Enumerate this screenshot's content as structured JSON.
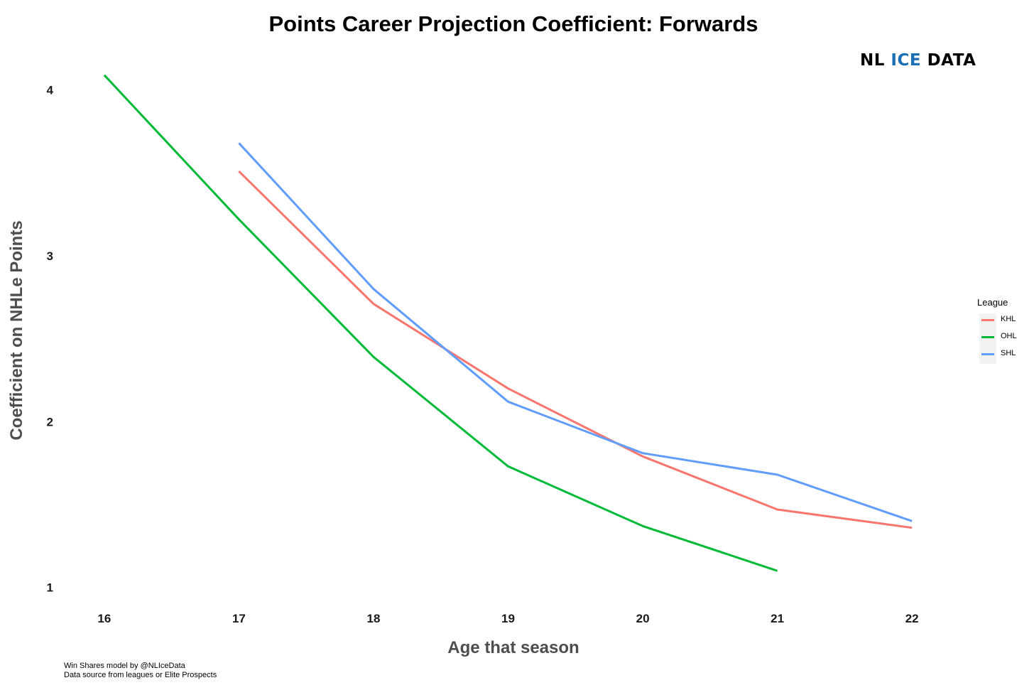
{
  "title": "Points Career Projection Coefficient: Forwards",
  "logo": {
    "part1": "NL ",
    "part2": "ICE",
    "part3": " DATA",
    "accent_color": "#1a6fb5"
  },
  "caption": {
    "line1": "Win Shares model by @NLIceData",
    "line2": "Data source from leagues or Elite Prospects"
  },
  "chart_data": {
    "type": "line",
    "title": "Points Career Projection Coefficient: Forwards",
    "xlabel": "Age that season",
    "ylabel": "Coefficient on NHLe Points",
    "x_ticks": [
      16,
      17,
      18,
      19,
      20,
      21,
      22
    ],
    "y_ticks": [
      1,
      2,
      3,
      4
    ],
    "xlim": [
      15.7,
      22.4
    ],
    "ylim": [
      0.9,
      4.2
    ],
    "grid": false,
    "legend": {
      "title": "League",
      "position": "right"
    },
    "series": [
      {
        "name": "KHL",
        "color": "#f8766d",
        "x": [
          17,
          18,
          19,
          20,
          21,
          22
        ],
        "y": [
          3.51,
          2.71,
          2.2,
          1.79,
          1.47,
          1.36
        ]
      },
      {
        "name": "OHL",
        "color": "#00ba38",
        "x": [
          16,
          17,
          18,
          19,
          20,
          21
        ],
        "y": [
          4.09,
          3.22,
          2.39,
          1.73,
          1.37,
          1.1
        ]
      },
      {
        "name": "SHL",
        "color": "#619cff",
        "x": [
          17,
          18,
          19,
          20,
          21,
          22
        ],
        "y": [
          3.68,
          2.8,
          2.12,
          1.81,
          1.68,
          1.4
        ]
      }
    ]
  }
}
